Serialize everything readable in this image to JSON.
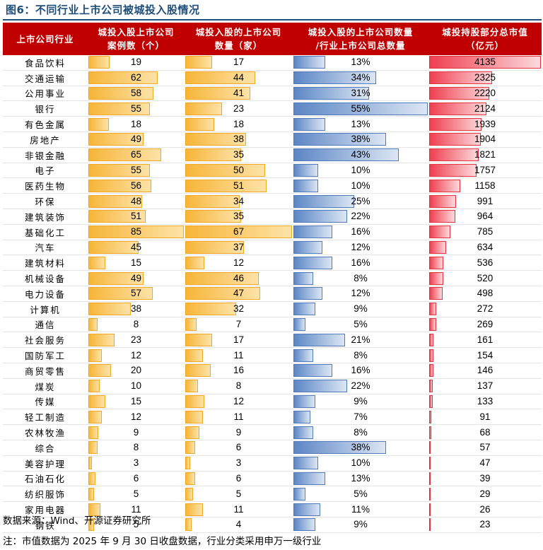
{
  "title": "图6：不同行业上市公司被城投入股情况",
  "headers": [
    [
      "上市公司行业"
    ],
    [
      "城投入股上市公司",
      "案例数（个）"
    ],
    [
      "城投入股的上市公司",
      "数量（家）"
    ],
    [
      "城投入股的上市公司数量",
      "/行业上市公司总数量"
    ],
    [
      "城投持股部分总市值",
      "（亿元）"
    ]
  ],
  "rows": [
    {
      "industry": "食品饮料",
      "cases": 19,
      "companies": 17,
      "ratio": "13%",
      "ratio_value": 13,
      "mktcap": 4135
    },
    {
      "industry": "交通运输",
      "cases": 62,
      "companies": 44,
      "ratio": "34%",
      "ratio_value": 34,
      "mktcap": 2325
    },
    {
      "industry": "公用事业",
      "cases": 58,
      "companies": 41,
      "ratio": "31%",
      "ratio_value": 31,
      "mktcap": 2220
    },
    {
      "industry": "银行",
      "cases": 55,
      "companies": 23,
      "ratio": "55%",
      "ratio_value": 55,
      "mktcap": 2124
    },
    {
      "industry": "有色金属",
      "cases": 18,
      "companies": 18,
      "ratio": "13%",
      "ratio_value": 13,
      "mktcap": 1939
    },
    {
      "industry": "房地产",
      "cases": 49,
      "companies": 38,
      "ratio": "38%",
      "ratio_value": 38,
      "mktcap": 1904
    },
    {
      "industry": "非银金融",
      "cases": 65,
      "companies": 35,
      "ratio": "43%",
      "ratio_value": 43,
      "mktcap": 1821
    },
    {
      "industry": "电子",
      "cases": 55,
      "companies": 50,
      "ratio": "10%",
      "ratio_value": 10,
      "mktcap": 1757
    },
    {
      "industry": "医药生物",
      "cases": 56,
      "companies": 51,
      "ratio": "10%",
      "ratio_value": 10,
      "mktcap": 1158
    },
    {
      "industry": "环保",
      "cases": 48,
      "companies": 34,
      "ratio": "25%",
      "ratio_value": 25,
      "mktcap": 991
    },
    {
      "industry": "建筑装饰",
      "cases": 51,
      "companies": 35,
      "ratio": "22%",
      "ratio_value": 22,
      "mktcap": 964
    },
    {
      "industry": "基础化工",
      "cases": 85,
      "companies": 67,
      "ratio": "16%",
      "ratio_value": 16,
      "mktcap": 785
    },
    {
      "industry": "汽车",
      "cases": 45,
      "companies": 37,
      "ratio": "12%",
      "ratio_value": 12,
      "mktcap": 634
    },
    {
      "industry": "建筑材料",
      "cases": 15,
      "companies": 12,
      "ratio": "16%",
      "ratio_value": 16,
      "mktcap": 536
    },
    {
      "industry": "机械设备",
      "cases": 49,
      "companies": 46,
      "ratio": "8%",
      "ratio_value": 8,
      "mktcap": 520
    },
    {
      "industry": "电力设备",
      "cases": 57,
      "companies": 47,
      "ratio": "12%",
      "ratio_value": 12,
      "mktcap": 498
    },
    {
      "industry": "计算机",
      "cases": 38,
      "companies": 32,
      "ratio": "9%",
      "ratio_value": 9,
      "mktcap": 272
    },
    {
      "industry": "通信",
      "cases": 8,
      "companies": 7,
      "ratio": "5%",
      "ratio_value": 5,
      "mktcap": 269
    },
    {
      "industry": "社会服务",
      "cases": 23,
      "companies": 17,
      "ratio": "21%",
      "ratio_value": 21,
      "mktcap": 161
    },
    {
      "industry": "国防军工",
      "cases": 12,
      "companies": 11,
      "ratio": "8%",
      "ratio_value": 8,
      "mktcap": 154
    },
    {
      "industry": "商贸零售",
      "cases": 20,
      "companies": 16,
      "ratio": "16%",
      "ratio_value": 16,
      "mktcap": 146
    },
    {
      "industry": "煤炭",
      "cases": 10,
      "companies": 8,
      "ratio": "22%",
      "ratio_value": 22,
      "mktcap": 137
    },
    {
      "industry": "传媒",
      "cases": 15,
      "companies": 12,
      "ratio": "9%",
      "ratio_value": 9,
      "mktcap": 133
    },
    {
      "industry": "轻工制造",
      "cases": 12,
      "companies": 11,
      "ratio": "7%",
      "ratio_value": 7,
      "mktcap": 91
    },
    {
      "industry": "农林牧渔",
      "cases": 9,
      "companies": 9,
      "ratio": "8%",
      "ratio_value": 8,
      "mktcap": 68
    },
    {
      "industry": "综合",
      "cases": 8,
      "companies": 6,
      "ratio": "38%",
      "ratio_value": 38,
      "mktcap": 57
    },
    {
      "industry": "美容护理",
      "cases": 3,
      "companies": 3,
      "ratio": "10%",
      "ratio_value": 10,
      "mktcap": 47
    },
    {
      "industry": "石油石化",
      "cases": 6,
      "companies": 6,
      "ratio": "13%",
      "ratio_value": 13,
      "mktcap": 39
    },
    {
      "industry": "纺织服饰",
      "cases": 5,
      "companies": 5,
      "ratio": "5%",
      "ratio_value": 5,
      "mktcap": 29
    },
    {
      "industry": "家用电器",
      "cases": 11,
      "companies": 11,
      "ratio": "11%",
      "ratio_value": 11,
      "mktcap": 26
    },
    {
      "industry": "钢铁",
      "cases": 5,
      "companies": 4,
      "ratio": "9%",
      "ratio_value": 9,
      "mktcap": 23
    }
  ],
  "source": "数据来源：Wind、开源证券研究所",
  "remark": "注：市值数据为 2025 年 9 月 30 日收盘数据，行业分类采用申万一级行业",
  "colors": {
    "header_bg": "#c00000",
    "title": "#1f4e79",
    "cases_bar": "#f7b538",
    "companies_bar": "#f7b538",
    "ratio_bar": "#5b86c5",
    "mktcap_bar": "#ef3f4f"
  }
}
